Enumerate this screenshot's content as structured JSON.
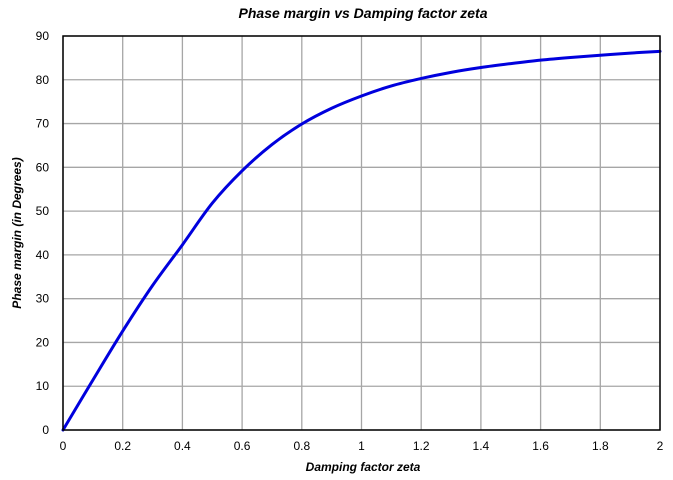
{
  "chart_data": {
    "type": "line",
    "title": "Phase margin  vs  Damping factor zeta",
    "xlabel": "Damping factor  zeta",
    "ylabel": "Phase margin  (in Degrees)",
    "xlim": [
      0,
      2
    ],
    "ylim": [
      0,
      90
    ],
    "x_ticks": [
      "0",
      "0.2",
      "0.4",
      "0.6",
      "0.8",
      "1",
      "1.2",
      "1.4",
      "1.6",
      "1.8",
      "2"
    ],
    "y_ticks": [
      "0",
      "10",
      "20",
      "30",
      "40",
      "50",
      "60",
      "70",
      "80",
      "90"
    ],
    "grid": true,
    "legend": "none",
    "series": [
      {
        "color": "#0000dd",
        "x": [
          0,
          0.1,
          0.2,
          0.3,
          0.4,
          0.5,
          0.6,
          0.7,
          0.8,
          0.9,
          1.0,
          1.1,
          1.2,
          1.3,
          1.4,
          1.5,
          1.6,
          1.7,
          1.8,
          1.9,
          2.0
        ],
        "y": [
          0,
          11.4,
          22.6,
          33.0,
          42.3,
          51.8,
          59.2,
          65.2,
          69.9,
          73.5,
          76.3,
          78.6,
          80.3,
          81.7,
          82.8,
          83.7,
          84.5,
          85.1,
          85.6,
          86.1,
          86.5
        ]
      }
    ]
  }
}
